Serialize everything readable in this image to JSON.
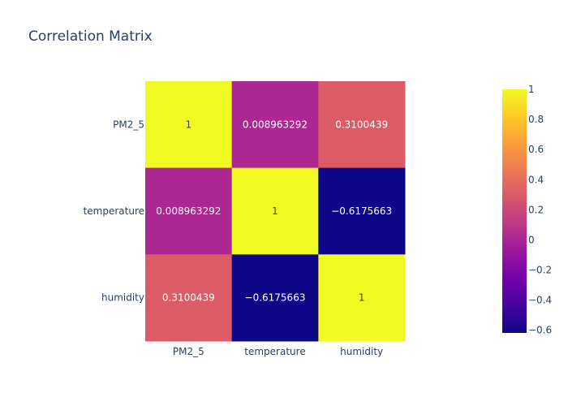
{
  "chart_data": {
    "type": "heatmap",
    "title": "Correlation Matrix",
    "x": [
      "PM2_5",
      "temperature",
      "humidity"
    ],
    "y": [
      "PM2_5",
      "temperature",
      "humidity"
    ],
    "z": [
      [
        1,
        0.008963292,
        0.3100439
      ],
      [
        0.008963292,
        1,
        -0.6175663
      ],
      [
        0.3100439,
        -0.6175663,
        1
      ]
    ],
    "z_labels": [
      [
        "1",
        "0.008963292",
        "0.3100439"
      ],
      [
        "0.008963292",
        "1",
        "−0.6175663"
      ],
      [
        "0.3100439",
        "−0.6175663",
        "1"
      ]
    ],
    "zmin": -0.6175663,
    "zmax": 1,
    "colorscale": "plasma",
    "colorbar": {
      "ticks": [
        1,
        0.8,
        0.6,
        0.4,
        0.2,
        0,
        -0.2,
        -0.4,
        -0.6
      ],
      "tick_labels": [
        "1",
        "0.8",
        "0.6",
        "0.4",
        "0.2",
        "0",
        "−0.2",
        "−0.4",
        "−0.6"
      ]
    },
    "legend": "colorbar-right"
  }
}
